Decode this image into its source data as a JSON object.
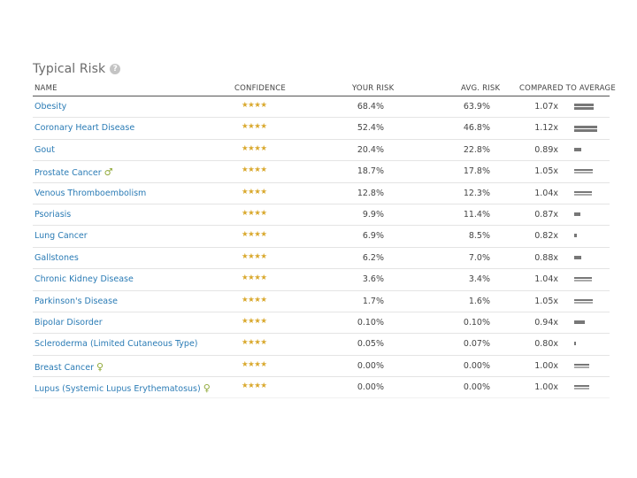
{
  "section": {
    "title": "Typical Risk",
    "help_icon": "question-circle-icon"
  },
  "columns": {
    "name": "NAME",
    "confidence": "CONFIDENCE",
    "your_risk": "YOUR RISK",
    "avg_risk": "AVG. RISK",
    "compared": "COMPARED TO AVERAGE"
  },
  "colors": {
    "link": "#2a7bb5",
    "star": "#d9a82c",
    "bar": "#777777",
    "male_female_symbol": "#8fa837"
  },
  "rows": [
    {
      "name": "Obesity",
      "sex": "",
      "stars": "★★★★",
      "your": "68.4%",
      "avg": "63.9%",
      "cmp": "1.07x",
      "ratio": 1.07
    },
    {
      "name": "Coronary Heart Disease",
      "sex": "",
      "stars": "★★★★",
      "your": "52.4%",
      "avg": "46.8%",
      "cmp": "1.12x",
      "ratio": 1.12
    },
    {
      "name": "Gout",
      "sex": "",
      "stars": "★★★★",
      "your": "20.4%",
      "avg": "22.8%",
      "cmp": "0.89x",
      "ratio": 0.89
    },
    {
      "name": "Prostate Cancer",
      "sex": "♂",
      "stars": "★★★★",
      "your": "18.7%",
      "avg": "17.8%",
      "cmp": "1.05x",
      "ratio": 1.05
    },
    {
      "name": "Venous Thromboembolism",
      "sex": "",
      "stars": "★★★★",
      "your": "12.8%",
      "avg": "12.3%",
      "cmp": "1.04x",
      "ratio": 1.04
    },
    {
      "name": "Psoriasis",
      "sex": "",
      "stars": "★★★★",
      "your": "9.9%",
      "avg": "11.4%",
      "cmp": "0.87x",
      "ratio": 0.87
    },
    {
      "name": "Lung Cancer",
      "sex": "",
      "stars": "★★★★",
      "your": "6.9%",
      "avg": "8.5%",
      "cmp": "0.82x",
      "ratio": 0.82
    },
    {
      "name": "Gallstones",
      "sex": "",
      "stars": "★★★★",
      "your": "6.2%",
      "avg": "7.0%",
      "cmp": "0.88x",
      "ratio": 0.88
    },
    {
      "name": "Chronic Kidney Disease",
      "sex": "",
      "stars": "★★★★",
      "your": "3.6%",
      "avg": "3.4%",
      "cmp": "1.04x",
      "ratio": 1.04
    },
    {
      "name": "Parkinson's Disease",
      "sex": "",
      "stars": "★★★★",
      "your": "1.7%",
      "avg": "1.6%",
      "cmp": "1.05x",
      "ratio": 1.05
    },
    {
      "name": "Bipolar Disorder",
      "sex": "",
      "stars": "★★★★",
      "your": "0.10%",
      "avg": "0.10%",
      "cmp": "0.94x",
      "ratio": 0.94
    },
    {
      "name": "Scleroderma (Limited Cutaneous Type)",
      "sex": "",
      "stars": "★★★★",
      "your": "0.05%",
      "avg": "0.07%",
      "cmp": "0.80x",
      "ratio": 0.8
    },
    {
      "name": "Breast Cancer",
      "sex": "♀",
      "stars": "★★★★",
      "your": "0.00%",
      "avg": "0.00%",
      "cmp": "1.00x",
      "ratio": 1.0
    },
    {
      "name": "Lupus (Systemic Lupus Erythematosus)",
      "sex": "♀",
      "stars": "★★★★",
      "your": "0.00%",
      "avg": "0.00%",
      "cmp": "1.00x",
      "ratio": 1.0
    }
  ]
}
